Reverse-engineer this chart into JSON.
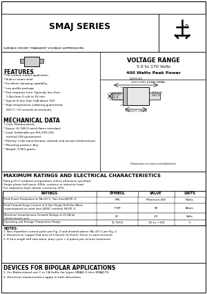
{
  "title": "SMAJ SERIES",
  "subtitle": "SURFACE MOUNT TRANSIENT VOLTAGE SUPPRESSORS",
  "voltage_range_title": "VOLTAGE RANGE",
  "voltage_range": "5.0 to 170 Volts",
  "power": "400 Watts Peak Power",
  "features_title": "FEATURES",
  "features": [
    "* For surface mount application",
    "* Built-in strain relief",
    "* Excellent clamping capability",
    "* Low profile package",
    "* Fast response time: Typically less than",
    "   1.0ps from 0 volt to 5V min.",
    "* Typical Io less than 1uA above 10V",
    "* High temperature soldering guaranteed",
    "   260°C / 10 seconds at terminals"
  ],
  "mech_title": "MECHANICAL DATA",
  "mech": [
    "* Case: Molded plastic",
    "* Epoxy: UL 94V-0 rated flame retardant",
    "* Lead: Solderable per MIL-STD-202,",
    "   method 208 guaranteed",
    "* Polarity: Color band denotes cathode end except Unidirectional",
    "* Mounting position: Any",
    "* Weight: 0.063 grams"
  ],
  "ratings_title": "MAXIMUM RATINGS AND ELECTRICAL CHARACTERISTICS",
  "ratings_note1": "Rating 25°C ambient temperature unless otherwise specified.",
  "ratings_note2": "Single phase half wave, 60Hz, resistive or inductive load.",
  "ratings_note3": "For capacitive load, derate current by 20%.",
  "table_headers": [
    "RATINGS",
    "SYMBOL",
    "VALUE",
    "UNITS"
  ],
  "table_rows": [
    [
      "Peak Power Dissipation at TA=25°C, Ton=1ms(NOTE 1)",
      "PPK",
      "Minimum 400",
      "Watts"
    ],
    [
      "Peak Forward Surge Current at 8.3ms Single Half Sine-Wave\nsuperimposed on rated load (JEDEC method) (NOTE 3)",
      "IFSM",
      "80",
      "Amps"
    ],
    [
      "Maximum Instantaneous Forward Voltage at 25.0A for\nUnidirectional only",
      "VF",
      "3.5",
      "Volts"
    ],
    [
      "Operating and Storage Temperature Range",
      "TJ, TSTG",
      "-55 to +150",
      "°C"
    ]
  ],
  "notes_title": "NOTES:",
  "notes": [
    "1. Non-repetition current pulse per Fig. 3 and derated above TA=25°C per Fig. 2.",
    "2. Mounted on Copper Pad area of 5.0mm2 (0.15mm Thick) to each terminal.",
    "3. 8.3ms single half sine-wave, duty cycle = 4 pulses per minute maximum."
  ],
  "bipolar_title": "DEVICES FOR BIPOLAR APPLICATIONS",
  "bipolar": [
    "1. For Bidirectional use C or CA Suffix for types SMAJ5.0 thru SMAJ170.",
    "2. Electrical characteristics apply in both directions."
  ],
  "diagram_label": "DO-214AC(SMA)",
  "bg_color": "#ffffff",
  "border_color": "#000000"
}
